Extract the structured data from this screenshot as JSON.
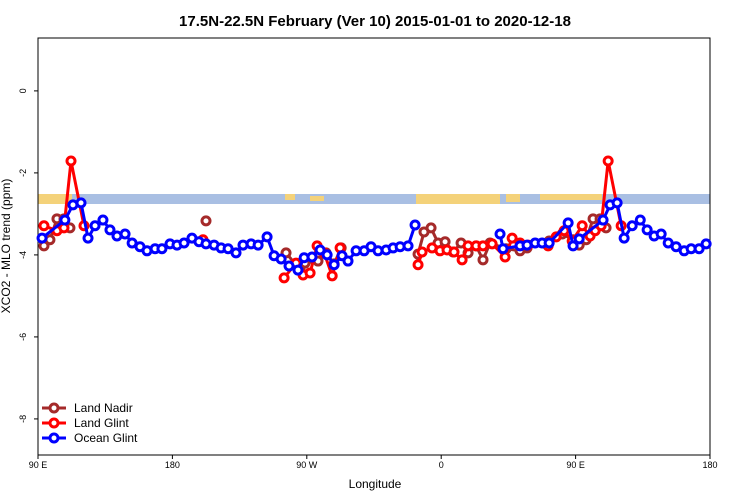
{
  "chart_data": {
    "type": "line",
    "title": "17.5N-22.5N February (Ver 10)   2015-01-01 to 2020-12-18",
    "x_label": "Longitude",
    "y_label": "XCO2 - MLO trend (ppm)",
    "xlim": [
      90,
      540
    ],
    "ylim": [
      -8.88,
      1.29
    ],
    "xticks": [
      {
        "value": 90,
        "label": "90 E"
      },
      180,
      {
        "value": 270,
        "label": "90 W"
      },
      {
        "value": 360,
        "label": "0"
      },
      {
        "value": 450,
        "label": "90 E"
      },
      {
        "value": 540,
        "label": "180"
      }
    ],
    "yticks": [
      0,
      -2,
      -4,
      -6,
      -8
    ],
    "legend": "bottom-left",
    "series": [
      {
        "name": "Land Nadir",
        "color": "#a52a2a",
        "x": [
          94,
          98,
          102.7,
          107.4,
          111.4,
          null,
          202.5,
          null,
          256.1,
          265.5,
          268.8,
          277.5,
          282.9,
          288.3,
          293,
          null,
          344.5,
          348.5,
          353.2,
          357.9,
          362.6,
          368,
          373.3,
          378,
          383.4,
          388,
          392.7,
          403.5,
          412.8,
          417.5,
          432.3,
          441,
          448.3,
          452.4,
          457.1,
          461.7,
          466.4,
          470.4
        ],
        "values": [
          -3.78,
          -3.63,
          -3.12,
          -3.12,
          -3.34,
          null,
          -3.17,
          null,
          -3.95,
          -4.37,
          -4.2,
          -4.15,
          -3.95,
          -4.22,
          -3.83,
          null,
          -3.98,
          -3.44,
          -3.34,
          -3.71,
          -3.68,
          -3.93,
          -3.71,
          -3.95,
          -3.78,
          -4.12,
          -3.71,
          -3.85,
          -3.9,
          -3.83,
          -3.66,
          -3.49,
          -3.63,
          -3.76,
          -3.63,
          -3.12,
          -3.12,
          -3.34
        ]
      },
      {
        "name": "Land Glint",
        "color": "#ff0000",
        "x": [
          94,
          102.7,
          107.4,
          112.1,
          120.8,
          null,
          200.5,
          null,
          254.8,
          262.8,
          267.5,
          272.2,
          276.9,
          281.6,
          287,
          292.3,
          null,
          344.5,
          347.2,
          353.9,
          359.2,
          363.9,
          368.6,
          374,
          378,
          383.4,
          388,
          394.1,
          402.8,
          407.5,
          412.8,
          418.2,
          431.6,
          437,
          442.3,
          447.7,
          454.4,
          459.7,
          463.1,
          467.1,
          471.8,
          480.5
        ],
        "values": [
          -3.29,
          -3.41,
          -3.34,
          -1.71,
          -3.29,
          null,
          -3.63,
          null,
          -4.56,
          -4.2,
          -4.49,
          -4.44,
          -3.78,
          -3.95,
          -4.51,
          -3.83,
          null,
          -4.24,
          -3.93,
          -3.83,
          -3.9,
          -3.88,
          -3.93,
          -4.12,
          -3.78,
          -3.78,
          -3.78,
          -3.73,
          -4.05,
          -3.59,
          -3.71,
          -3.76,
          -3.78,
          -3.56,
          -3.41,
          -3.66,
          -3.29,
          -3.54,
          -3.41,
          -3.29,
          -1.71,
          -3.29
        ]
      },
      {
        "name": "Ocean Glint",
        "color": "#0000ff",
        "x": [
          92.7,
          108,
          113.4,
          118.8,
          123.5,
          128.2,
          133.5,
          138.2,
          142.9,
          148.3,
          153,
          158.3,
          163,
          168.4,
          173,
          178.4,
          183.1,
          187.8,
          193.1,
          197.8,
          202.5,
          207.9,
          212.6,
          217.3,
          222.6,
          227.3,
          232.7,
          237.4,
          243.4,
          248.1,
          252.8,
          258.1,
          264.1,
          268.2,
          273.5,
          278.9,
          283.6,
          288.3,
          293.6,
          297.6,
          303,
          308.4,
          313,
          317.7,
          323.1,
          327.8,
          332.5,
          337.8,
          342.5,
          null,
          399.4,
          401.4,
          412.8,
          417.5,
          422.9,
          427.6,
          432.3,
          445,
          448.3,
          452.4,
          468.4,
          473.1,
          477.8,
          482.5,
          487.9,
          493.3,
          497.9,
          502.6,
          507.3,
          512,
          517.3,
          522.7,
          527.4,
          532.7,
          537.4
        ],
        "values": [
          -3.59,
          -3.15,
          -2.78,
          -2.73,
          -3.59,
          -3.29,
          -3.15,
          -3.39,
          -3.54,
          -3.49,
          -3.71,
          -3.8,
          -3.9,
          -3.85,
          -3.85,
          -3.73,
          -3.76,
          -3.71,
          -3.59,
          -3.68,
          -3.73,
          -3.76,
          -3.83,
          -3.85,
          -3.95,
          -3.76,
          -3.73,
          -3.76,
          -3.56,
          -4.02,
          -4.1,
          -4.27,
          -4.37,
          -4.07,
          -4.05,
          -3.88,
          -4,
          -4.24,
          -4.02,
          -4.15,
          -3.9,
          -3.9,
          -3.8,
          -3.9,
          -3.88,
          -3.83,
          -3.8,
          -3.78,
          -3.27,
          null,
          -3.49,
          -3.85,
          -3.78,
          -3.76,
          -3.71,
          -3.71,
          -3.71,
          -3.22,
          -3.78,
          -3.61,
          -3.15,
          -2.78,
          -2.73,
          -3.59,
          -3.29,
          -3.15,
          -3.39,
          -3.54,
          -3.49,
          -3.71,
          -3.8,
          -3.9,
          -3.85,
          -3.85,
          -3.73
        ]
      }
    ]
  }
}
